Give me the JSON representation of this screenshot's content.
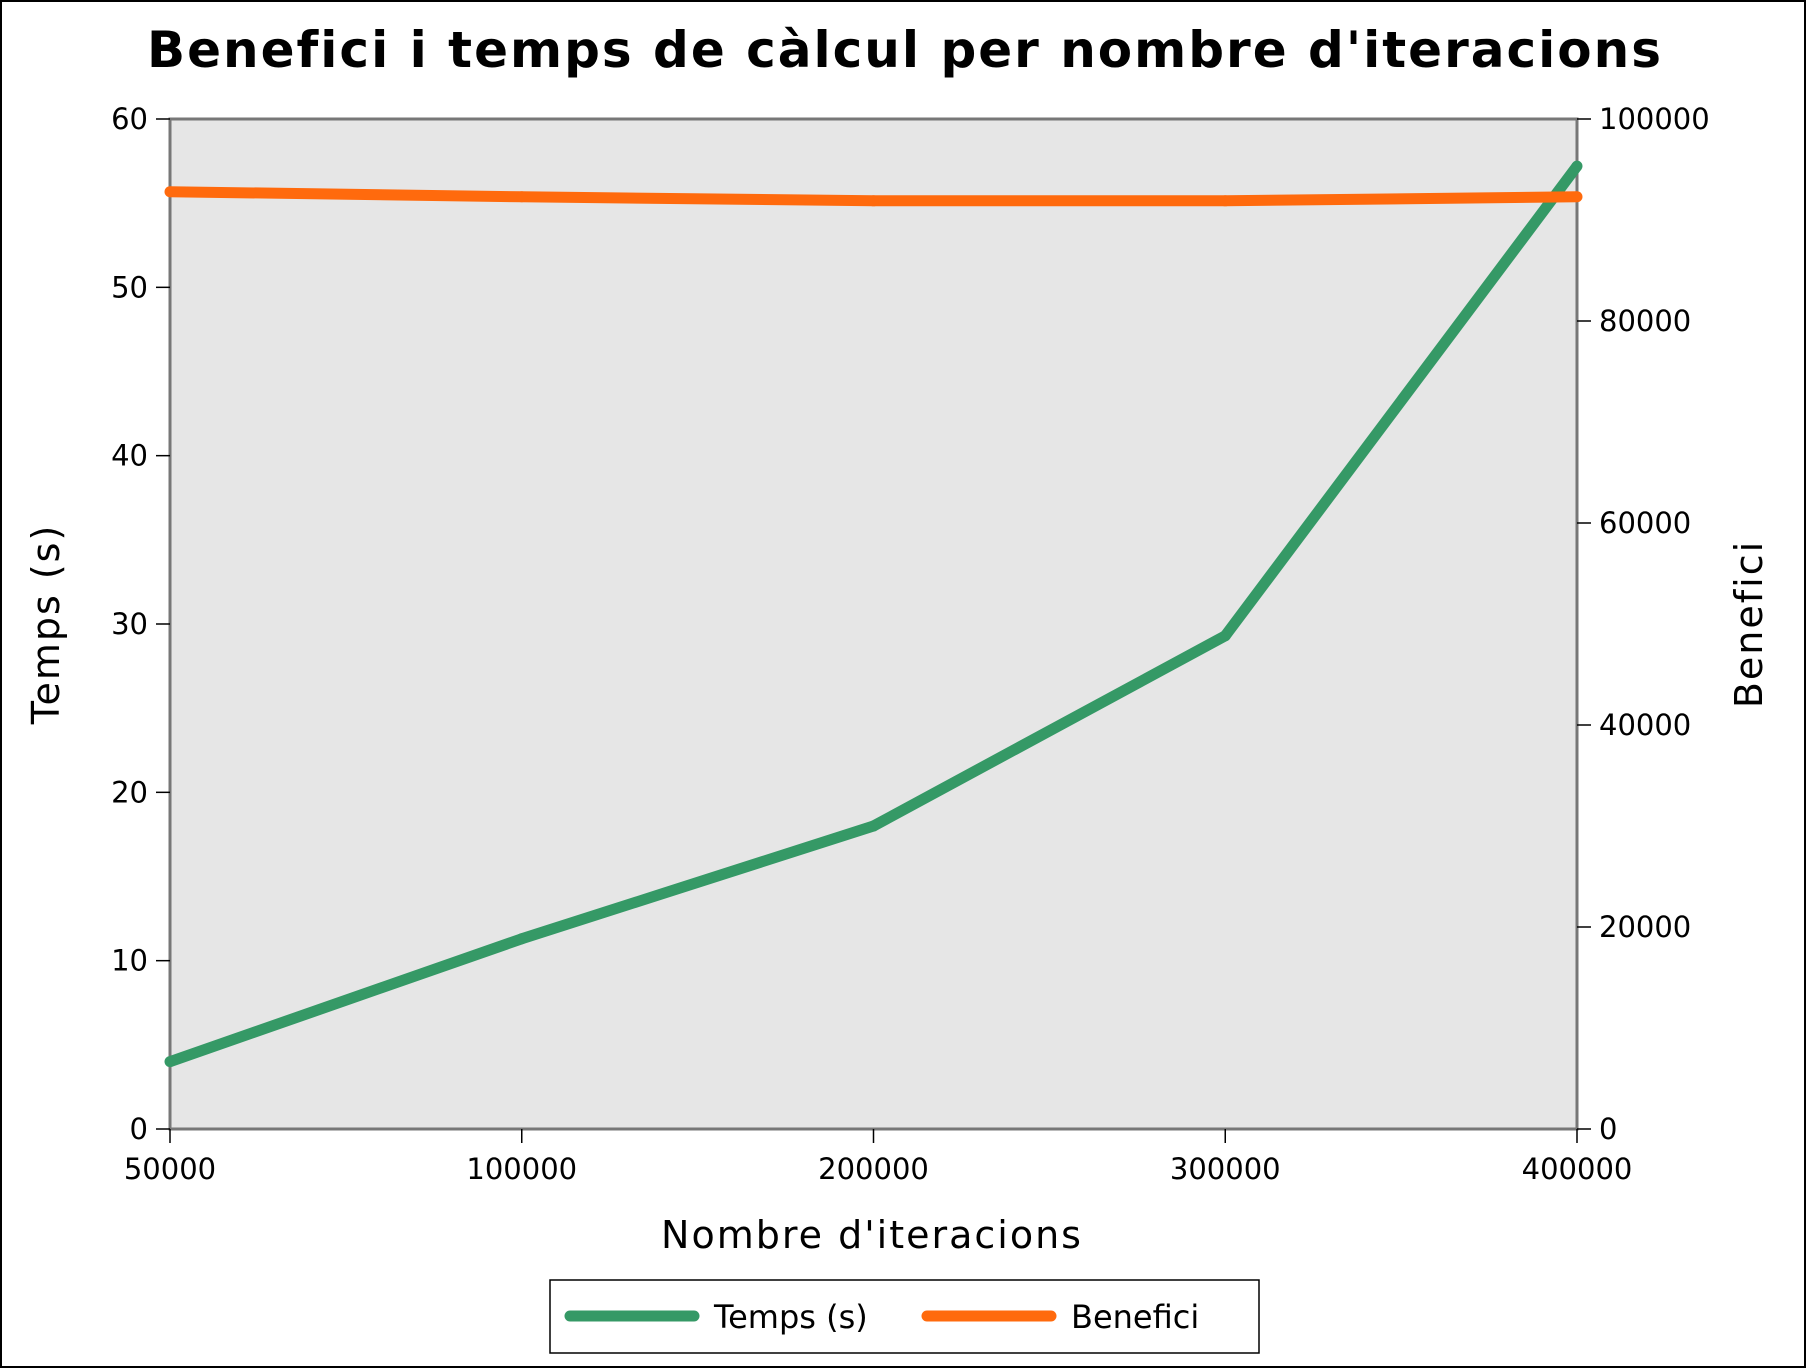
{
  "chart_data": {
    "type": "line",
    "title": "Benefici i temps de càlcul per nombre d'iteracions",
    "xlabel": "Nombre d'iteracions",
    "ylabel": "Temps (s)",
    "y2label": "Benefici",
    "x_scale": "categorical",
    "categories": [
      "50000",
      "100000",
      "200000",
      "300000",
      "400000"
    ],
    "ylim": [
      0,
      60
    ],
    "y_ticks": [
      "0",
      "10",
      "20",
      "30",
      "40",
      "50",
      "60"
    ],
    "y2lim": [
      0,
      100000
    ],
    "y2_ticks": [
      "0",
      "20000",
      "40000",
      "60000",
      "80000",
      "100000"
    ],
    "grid": false,
    "legend_position": "bottom",
    "series": [
      {
        "name": "Temps (s)",
        "axis": "left",
        "color": "#359966",
        "values": [
          4,
          11.3,
          18,
          29.3,
          57.2
        ]
      },
      {
        "name": "Benefici",
        "axis": "right",
        "color": "#ff6a0d",
        "values": [
          92800,
          92300,
          91900,
          91900,
          92300
        ]
      }
    ],
    "colors": {
      "plot_background": "#e6e6e6"
    }
  }
}
